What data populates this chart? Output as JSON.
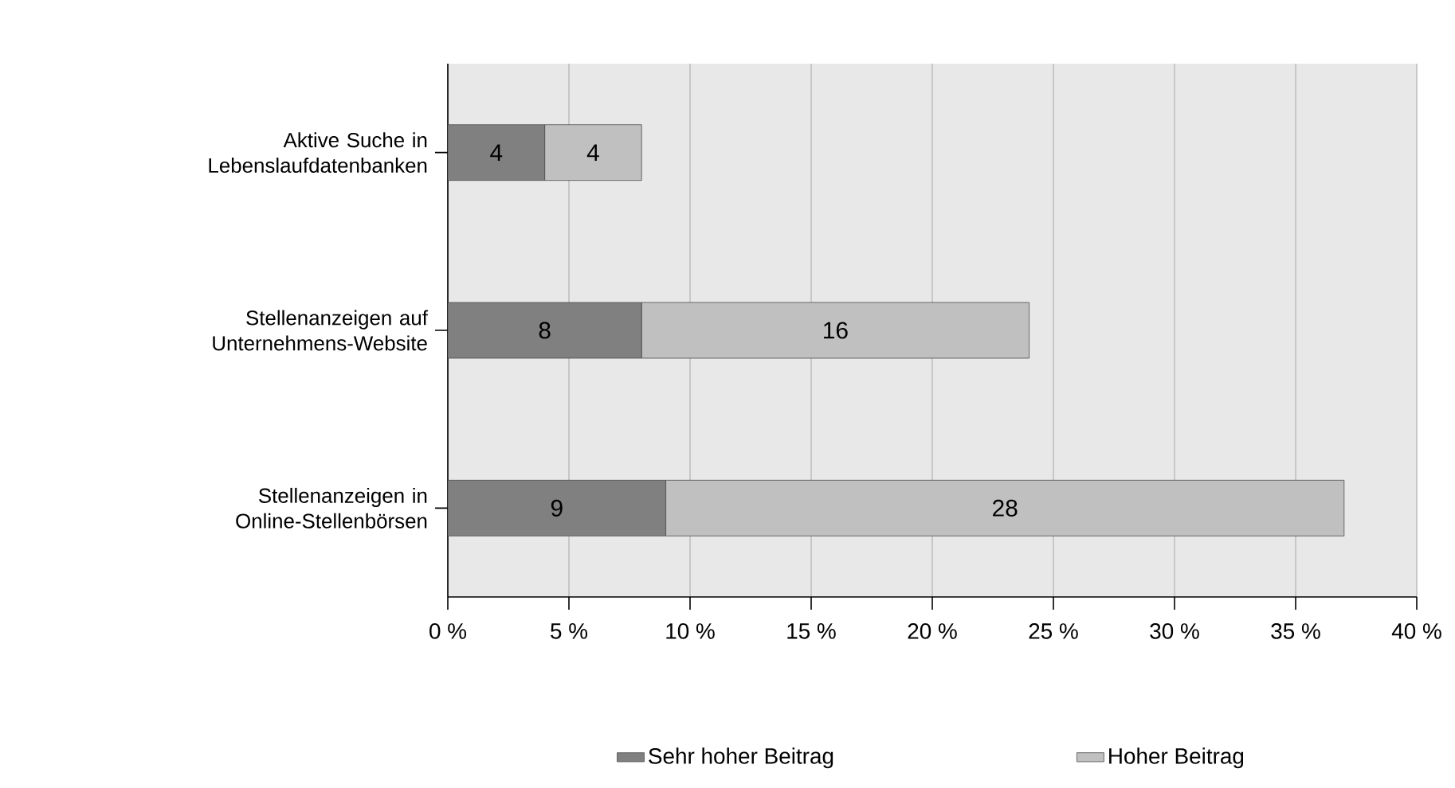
{
  "chart_data": {
    "type": "bar",
    "orientation": "horizontal",
    "stacked": true,
    "data_labels": true,
    "grid": "x",
    "legend": "bottom",
    "categories": [
      "Aktive Suche in Lebenslaufdatenbanken",
      "Stellenanzeigen auf Unternehmens-Website",
      "Stellenanzeigen in Online-Stellenbörsen"
    ],
    "series": [
      {
        "name": "Sehr hoher Beitrag",
        "color": "#808080",
        "values": [
          4,
          8,
          9
        ]
      },
      {
        "name": "Hoher Beitrag",
        "color": "#c0c0c0",
        "values": [
          4,
          16,
          28
        ]
      }
    ],
    "xlim": [
      0,
      40
    ],
    "xticks": [
      {
        "value": 0,
        "label": "0 %"
      },
      {
        "value": 5,
        "label": "5 %"
      },
      {
        "value": 10,
        "label": "10 %"
      },
      {
        "value": 15,
        "label": "15 %"
      },
      {
        "value": 20,
        "label": "20 %"
      },
      {
        "value": 25,
        "label": "25 %"
      },
      {
        "value": 30,
        "label": "30 %"
      },
      {
        "value": 35,
        "label": "35 %"
      },
      {
        "value": 40,
        "label": "40 %"
      }
    ]
  }
}
